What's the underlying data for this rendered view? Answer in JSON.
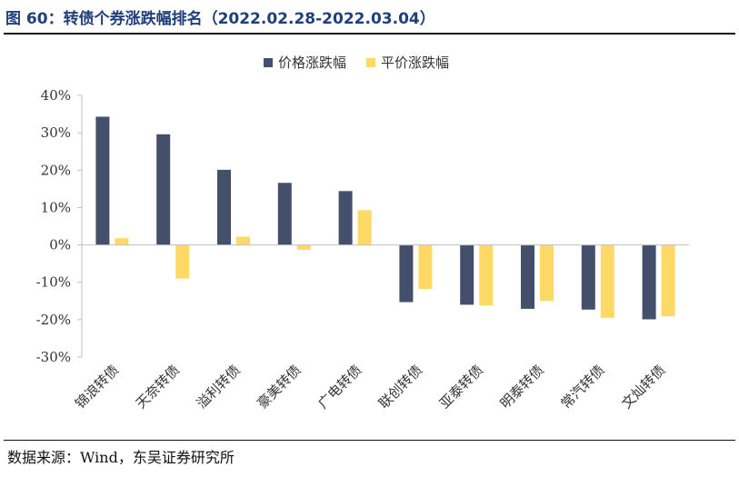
{
  "header": {
    "title": "图 60：转债个券涨跌幅排名（2022.02.28-2022.03.04）"
  },
  "footer": {
    "source": "数据来源：Wind，东吴证券研究所"
  },
  "colors": {
    "price": "#44506b",
    "parity": "#ffd966"
  },
  "chart_data": {
    "type": "bar",
    "title": "",
    "xlabel": "",
    "ylabel": "",
    "ylim": [
      -30,
      40
    ],
    "yticks": [
      "40%",
      "30%",
      "20%",
      "10%",
      "0%",
      "-10%",
      "-20%",
      "-30%"
    ],
    "ytick_values": [
      40,
      30,
      20,
      10,
      0,
      -10,
      -20,
      -30
    ],
    "legend_position": "top-center",
    "categories": [
      "锦浪转债",
      "天奈转债",
      "溢利转债",
      "豪美转债",
      "广电转债",
      "联创转债",
      "亚泰转债",
      "明泰转债",
      "常汽转债",
      "文灿转债"
    ],
    "series": [
      {
        "name": "价格涨跌幅",
        "values": [
          34.3,
          29.6,
          20.1,
          16.6,
          14.4,
          -15.3,
          -16.0,
          -17.1,
          -17.3,
          -19.9
        ]
      },
      {
        "name": "平价涨跌幅",
        "values": [
          1.8,
          -9.0,
          2.2,
          -1.3,
          9.3,
          -11.8,
          -16.2,
          -15.0,
          -19.5,
          -19.1
        ]
      }
    ]
  }
}
